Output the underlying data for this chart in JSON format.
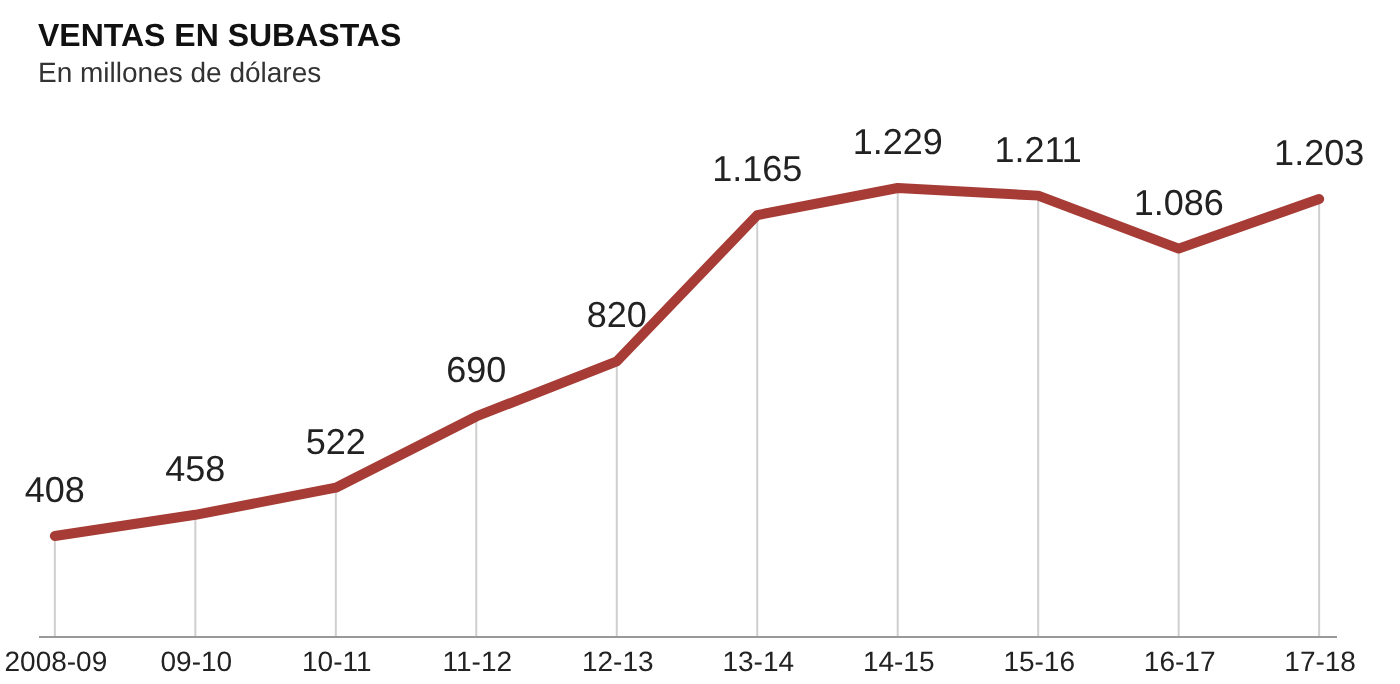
{
  "chart_data": {
    "type": "line",
    "title": "VENTAS EN SUBASTAS",
    "subtitle": "En millones de dólares",
    "categories": [
      "2008-09",
      "09-10",
      "10-11",
      "11-12",
      "12-13",
      "13-14",
      "14-15",
      "15-16",
      "16-17",
      "17-18"
    ],
    "series": [
      {
        "color": "#a63c35",
        "values": [
          408,
          458,
          522,
          690,
          820,
          1165,
          1229,
          1211,
          1086,
          1203
        ],
        "value_labels": [
          "408",
          "458",
          "522",
          "690",
          "820",
          "1.165",
          "1.229",
          "1.211",
          "1.086",
          "1.203"
        ]
      }
    ],
    "tick_labels": "x",
    "grid": "x",
    "marker": "none",
    "line_style": "solid"
  }
}
